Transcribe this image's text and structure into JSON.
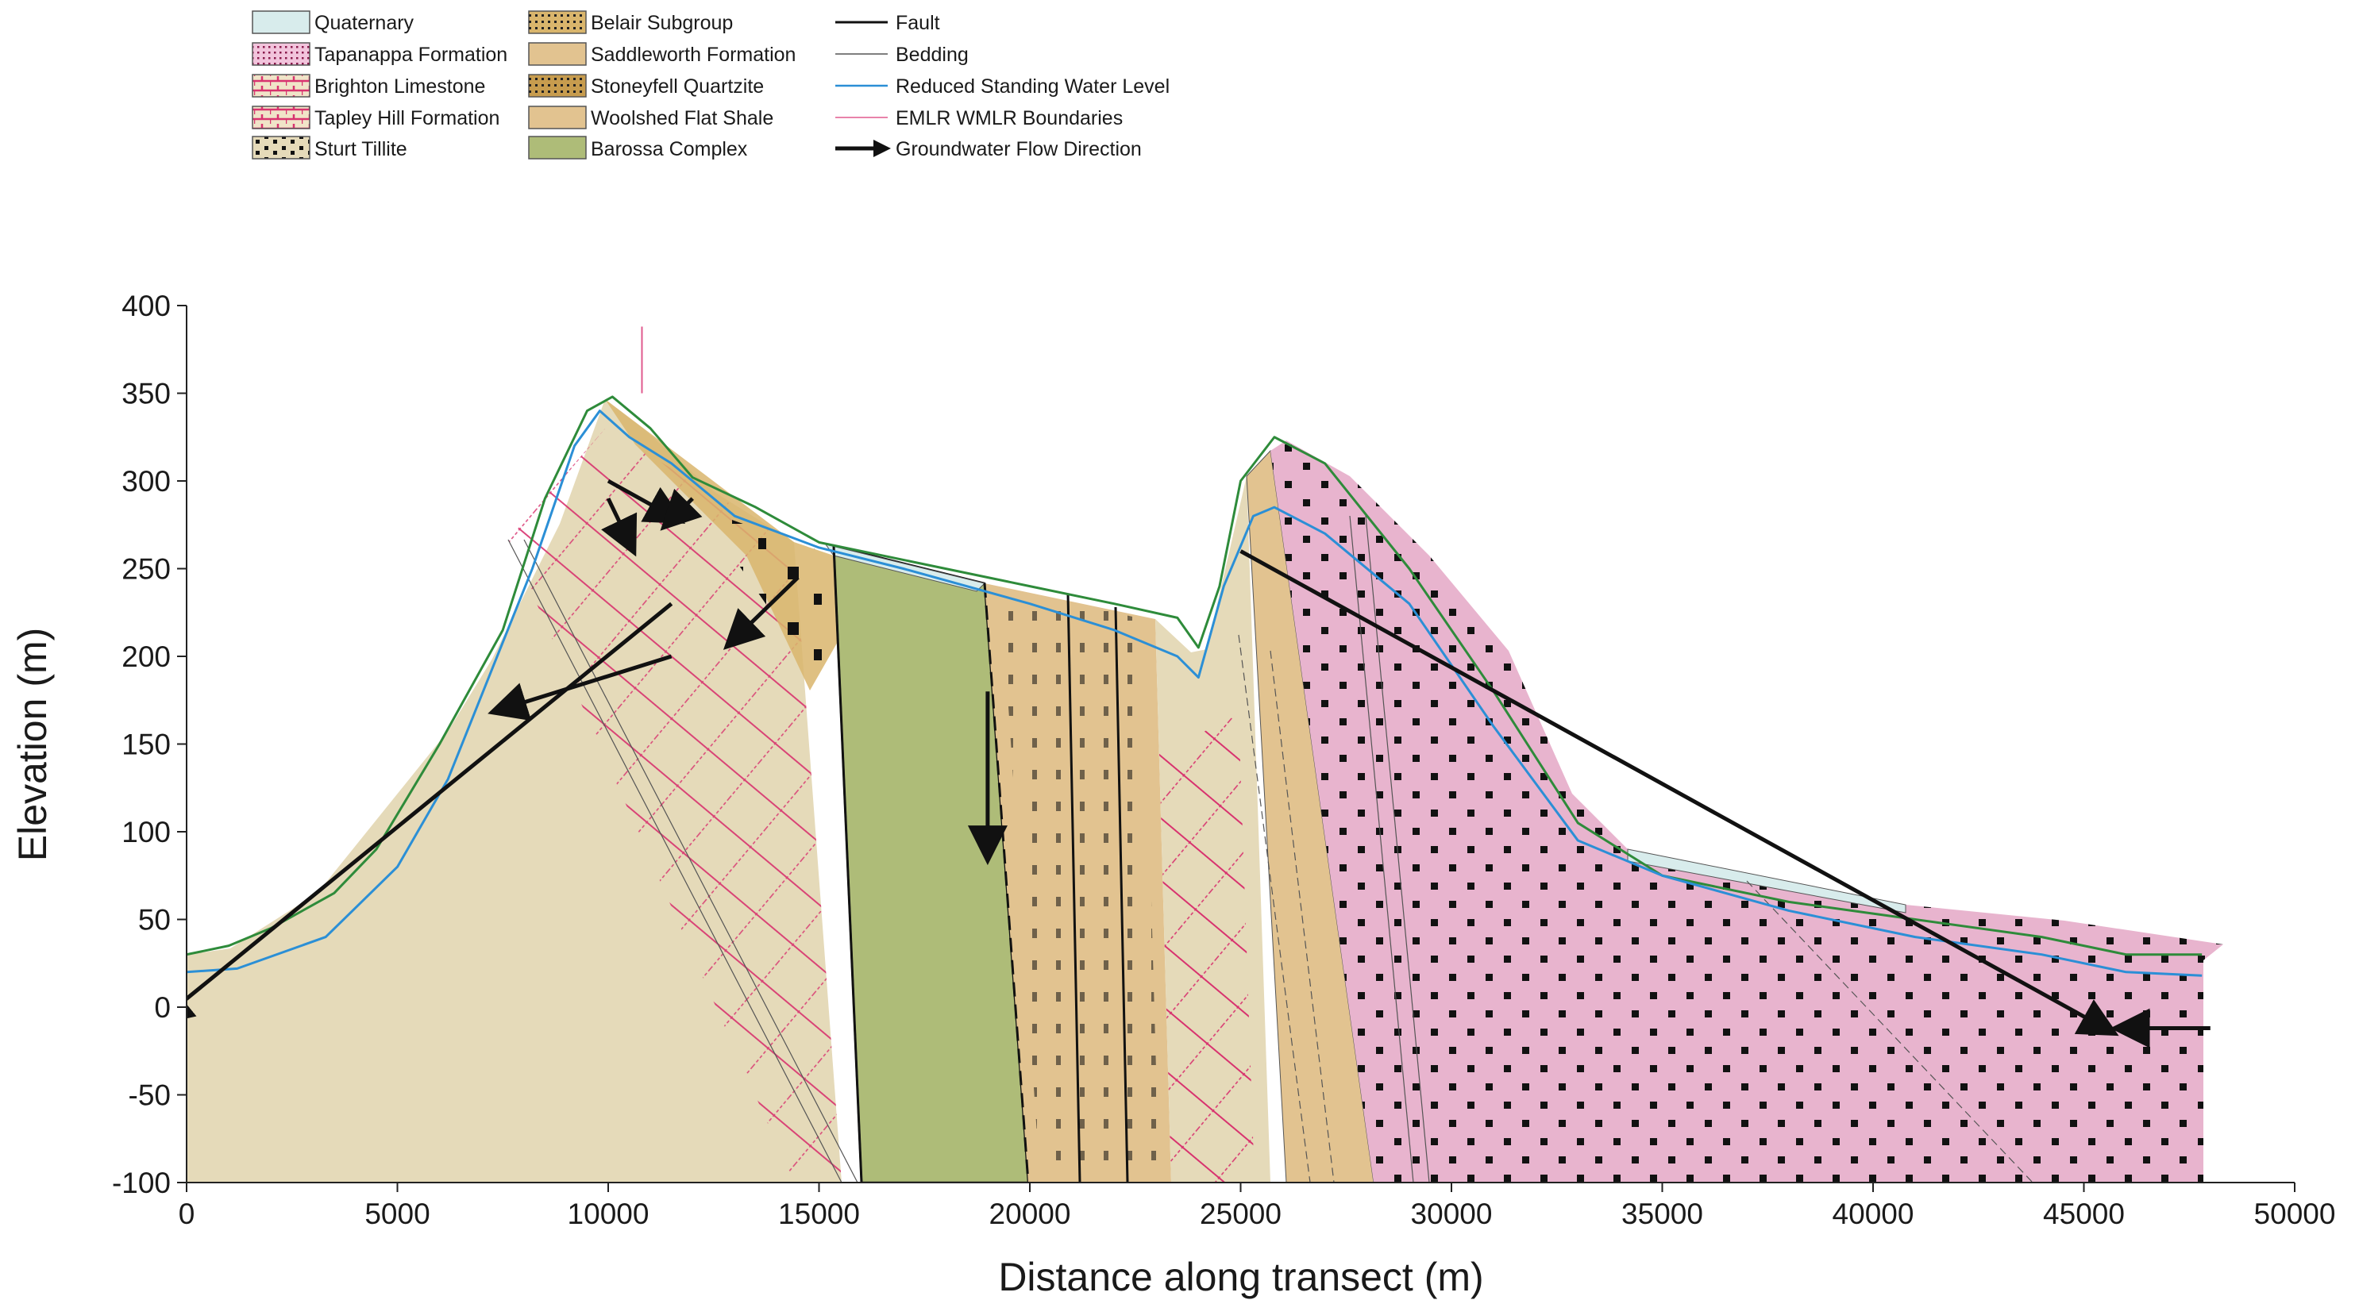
{
  "legend": {
    "units": [
      {
        "label": "Quaternary",
        "fill": "#d8ecec",
        "pattern": "none"
      },
      {
        "label": "Tapanappa Formation",
        "fill": "#e8b4ce",
        "pattern": "dots"
      },
      {
        "label": "Brighton Limestone",
        "fill": "#e8dbbd",
        "pattern": "pink-bricks"
      },
      {
        "label": "Tapley Hill Formation",
        "fill": "#e8dbbd",
        "pattern": "pink-bricks-bold"
      },
      {
        "label": "Sturt Tillite",
        "fill": "#e5dab9",
        "pattern": "black-blocks"
      },
      {
        "label": "Belair Subgroup",
        "fill": "#d9b56c",
        "pattern": "black-dots"
      },
      {
        "label": "Saddleworth Formation",
        "fill": "#e2c390",
        "pattern": "none"
      },
      {
        "label": "Stoneyfell Quartzite",
        "fill": "#c79c4e",
        "pattern": "black-dots"
      },
      {
        "label": "Woolshed Flat Shale",
        "fill": "#e2c390",
        "pattern": "none"
      },
      {
        "label": "Barossa Complex",
        "fill": "#aebc78",
        "pattern": "none"
      }
    ],
    "lines": [
      {
        "label": "Fault",
        "color": "#111111",
        "style": "solid-thick"
      },
      {
        "label": "Bedding",
        "color": "#555555",
        "style": "solid-thin"
      },
      {
        "label": "Reduced Standing Water Level",
        "color": "#2b8fd6",
        "style": "solid"
      },
      {
        "label": "EMLR WMLR Boundaries",
        "color": "#e05a8e",
        "style": "solid-thin"
      },
      {
        "label": "Groundwater Flow Direction",
        "color": "#111111",
        "style": "arrow"
      }
    ]
  },
  "axes": {
    "xlabel": "Distance along transect (m)",
    "ylabel": "Elevation (m)",
    "xlim": [
      0,
      50000
    ],
    "ylim": [
      -100,
      400
    ],
    "xticks": [
      "0",
      "5000",
      "10000",
      "15000",
      "20000",
      "25000",
      "30000",
      "35000",
      "40000",
      "45000",
      "50000"
    ],
    "yticks": [
      "400",
      "350",
      "300",
      "250",
      "200",
      "150",
      "100",
      "50",
      "0",
      "-50",
      "-100"
    ]
  },
  "profile": {
    "ground_surface": [
      [
        0,
        30
      ],
      [
        1000,
        35
      ],
      [
        2000,
        45
      ],
      [
        3500,
        65
      ],
      [
        4500,
        90
      ],
      [
        6000,
        150
      ],
      [
        7500,
        215
      ],
      [
        8500,
        290
      ],
      [
        9500,
        340
      ],
      [
        10100,
        348
      ],
      [
        11000,
        330
      ],
      [
        12000,
        302
      ],
      [
        13500,
        285
      ],
      [
        15000,
        265
      ],
      [
        17000,
        255
      ],
      [
        20000,
        240
      ],
      [
        22000,
        230
      ],
      [
        23500,
        222
      ],
      [
        24000,
        205
      ],
      [
        24500,
        240
      ],
      [
        25000,
        300
      ],
      [
        25800,
        325
      ],
      [
        27000,
        310
      ],
      [
        29000,
        250
      ],
      [
        31000,
        180
      ],
      [
        33000,
        105
      ],
      [
        35000,
        75
      ],
      [
        38000,
        60
      ],
      [
        41000,
        50
      ],
      [
        44000,
        40
      ],
      [
        46000,
        30
      ],
      [
        47800,
        30
      ]
    ],
    "water_level": [
      [
        0,
        20
      ],
      [
        1200,
        22
      ],
      [
        3300,
        40
      ],
      [
        5000,
        80
      ],
      [
        6200,
        130
      ],
      [
        7200,
        190
      ],
      [
        8200,
        250
      ],
      [
        9200,
        320
      ],
      [
        9800,
        340
      ],
      [
        10500,
        325
      ],
      [
        11500,
        310
      ],
      [
        13000,
        280
      ],
      [
        15000,
        262
      ],
      [
        17000,
        250
      ],
      [
        20000,
        230
      ],
      [
        22000,
        215
      ],
      [
        23500,
        200
      ],
      [
        24000,
        188
      ],
      [
        24600,
        240
      ],
      [
        25300,
        280
      ],
      [
        25800,
        285
      ],
      [
        27000,
        270
      ],
      [
        29000,
        230
      ],
      [
        31000,
        160
      ],
      [
        33000,
        95
      ],
      [
        35000,
        75
      ],
      [
        38000,
        55
      ],
      [
        41000,
        40
      ],
      [
        44000,
        30
      ],
      [
        46000,
        20
      ],
      [
        47800,
        18
      ]
    ],
    "emlr_wmlr_boundary_x": 10800,
    "groundwater_flow_arrows": [
      {
        "from": [
          11500,
          200
        ],
        "to": [
          7500,
          170
        ],
        "label": ""
      },
      {
        "from": [
          11500,
          230
        ],
        "to": [
          -500,
          -5
        ],
        "label": ""
      },
      {
        "from": [
          10000,
          300
        ],
        "to": [
          11500,
          280
        ],
        "label": ""
      },
      {
        "from": [
          10000,
          290
        ],
        "to": [
          10500,
          265
        ],
        "label": ""
      },
      {
        "from": [
          12000,
          290
        ],
        "to": [
          11500,
          278
        ],
        "label": ""
      },
      {
        "from": [
          14500,
          245
        ],
        "to": [
          13000,
          210
        ],
        "label": ""
      },
      {
        "from": [
          19000,
          180
        ],
        "to": [
          19000,
          90
        ],
        "label": ""
      },
      {
        "from": [
          25000,
          260
        ],
        "to": [
          45500,
          -12
        ],
        "label": ""
      },
      {
        "from": [
          48000,
          -12
        ],
        "to": [
          46000,
          -12
        ],
        "label": ""
      }
    ]
  }
}
